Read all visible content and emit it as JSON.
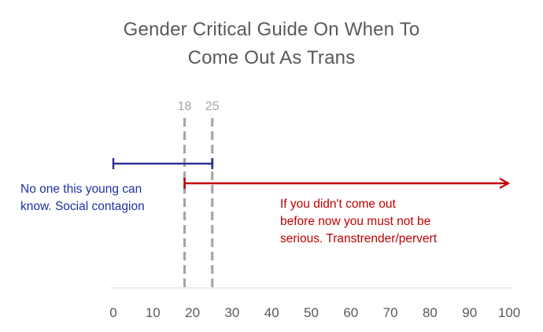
{
  "chart_data": {
    "type": "line",
    "title_lines": [
      "Gender Critical Guide On When To",
      "Come Out As Trans"
    ],
    "x_ticks": [
      0,
      10,
      20,
      30,
      40,
      50,
      60,
      70,
      80,
      90,
      100
    ],
    "xlim": [
      0,
      100
    ],
    "grid": false,
    "markers": [
      {
        "value": 18,
        "label": "18",
        "color": "#a6a6a6"
      },
      {
        "value": 25,
        "label": "25",
        "color": "#a6a6a6"
      }
    ],
    "ranges": [
      {
        "start": 0,
        "end": 25,
        "color": "#2e3192",
        "style": "bracket",
        "annotation_lines": [
          "No one this young can",
          "know. Social contagion"
        ]
      },
      {
        "start": 18,
        "end": 100,
        "color": "#c00000",
        "style": "arrow",
        "annotation_lines": [
          "If you didn't come out",
          "before now you must not be",
          "serious. Transtrender/pervert"
        ]
      }
    ]
  }
}
